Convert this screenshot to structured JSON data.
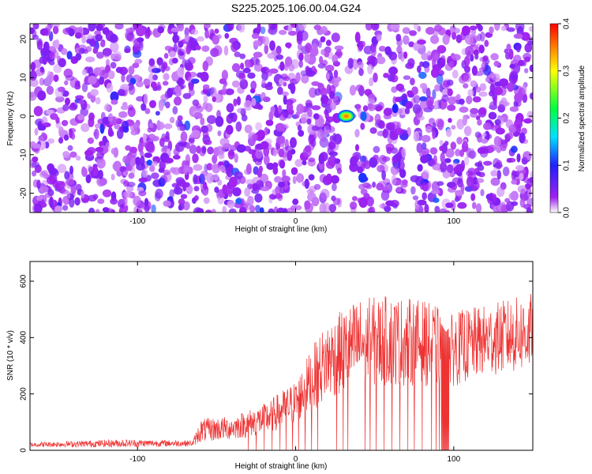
{
  "title": "S225.2025.106.00.04.G24",
  "colors": {
    "spectrogram_background": "#ffffff",
    "snr_line": "#ee3333",
    "axis": "#000000"
  },
  "chart_data": [
    {
      "type": "heatmap",
      "xlabel": "Height of straight line (km)",
      "ylabel": "Frequency (Hz)",
      "xlim": [
        -168,
        150
      ],
      "ylim": [
        -25,
        24
      ],
      "xticks": [
        -100,
        0,
        100
      ],
      "yticks": [
        -20,
        -10,
        0,
        10,
        20
      ],
      "colorbar": {
        "label": "Normalized spectral amplitude",
        "range": [
          0.0,
          0.4
        ],
        "ticks": [
          0.0,
          0.1,
          0.2,
          0.3,
          0.4
        ],
        "scale": [
          "#ffffff",
          "#a020f0",
          "#2020ff",
          "#00e0ff",
          "#00ff40",
          "#ffff00",
          "#ff0000"
        ]
      },
      "background_amplitude": 0.03,
      "gap_band_x": [
        28,
        36
      ],
      "peak": {
        "x": 32,
        "y": 0,
        "amplitude": 0.35
      },
      "secondary_peaks": [
        {
          "x": 43,
          "y": 0,
          "amplitude": 0.12
        },
        {
          "x": 63,
          "y": 2,
          "amplitude": 0.1
        }
      ]
    },
    {
      "type": "line",
      "xlabel": "Height of straight line (km)",
      "ylabel": "SNR (10 * v/v)",
      "xlim": [
        -168,
        150
      ],
      "ylim": [
        0,
        670
      ],
      "xticks": [
        -100,
        0,
        100
      ],
      "yticks": [
        0,
        200,
        400,
        600
      ],
      "envelope": {
        "x": [
          -168,
          -110,
          -65,
          -60,
          -40,
          -20,
          0,
          10,
          20,
          40,
          60,
          80,
          90,
          95,
          100,
          120,
          150
        ],
        "mean": [
          20,
          25,
          25,
          70,
          80,
          110,
          170,
          250,
          320,
          380,
          390,
          380,
          370,
          330,
          360,
          390,
          420
        ],
        "spread": [
          12,
          20,
          15,
          60,
          60,
          80,
          110,
          160,
          200,
          230,
          230,
          220,
          200,
          180,
          190,
          180,
          200
        ]
      },
      "dropouts_to_zero_km": [
        -30,
        -25,
        -20,
        -15,
        -10,
        -6,
        -2,
        2,
        6,
        10,
        14,
        26,
        30,
        33,
        44,
        47,
        51,
        56,
        61,
        66,
        71,
        75,
        80,
        86,
        89,
        91,
        93,
        94,
        95,
        96
      ]
    }
  ]
}
